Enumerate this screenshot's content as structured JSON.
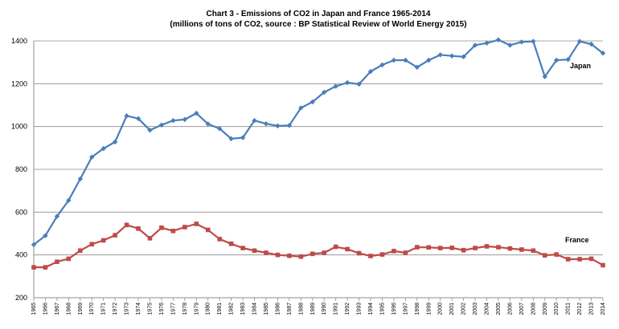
{
  "chart_data": {
    "type": "line",
    "title": "Chart 3 - Emissions of CO2 in Japan and France 1965-2014",
    "subtitle": "(millions of tons of CO2, source : BP Statistical Review of World Energy 2015)",
    "xlabel": "",
    "ylabel": "",
    "ylim": [
      200,
      1400
    ],
    "yticks": [
      "200",
      "400",
      "600",
      "800",
      "1000",
      "1200",
      "1400"
    ],
    "grid": true,
    "x": [
      "1965",
      "1966",
      "1967",
      "1968",
      "1969",
      "1970",
      "1971",
      "1972",
      "1973",
      "1974",
      "1975",
      "1976",
      "1977",
      "1978",
      "1979",
      "1980",
      "1981",
      "1982",
      "1983",
      "1984",
      "1985",
      "1986",
      "1987",
      "1988",
      "1989",
      "1990",
      "1991",
      "1992",
      "1993",
      "1994",
      "1995",
      "1996",
      "1997",
      "1998",
      "1999",
      "2000",
      "2001",
      "2002",
      "2003",
      "2004",
      "2005",
      "2006",
      "2007",
      "2008",
      "2009",
      "2010",
      "2011",
      "2012",
      "2013",
      "2014"
    ],
    "series": [
      {
        "name": "Japan",
        "color": "#4a7ebb",
        "marker": "diamond",
        "values": [
          448,
          490,
          580,
          655,
          755,
          857,
          897,
          928,
          1050,
          1037,
          983,
          1007,
          1028,
          1033,
          1062,
          1012,
          990,
          943,
          948,
          1028,
          1013,
          1003,
          1005,
          1087,
          1115,
          1160,
          1188,
          1205,
          1198,
          1257,
          1288,
          1310,
          1310,
          1277,
          1310,
          1335,
          1330,
          1326,
          1380,
          1390,
          1405,
          1380,
          1395,
          1398,
          1233,
          1310,
          1313,
          1398,
          1385,
          1343
        ]
      },
      {
        "name": "France",
        "color": "#be4b48",
        "marker": "square",
        "values": [
          342,
          342,
          368,
          382,
          420,
          450,
          468,
          492,
          540,
          523,
          478,
          527,
          512,
          530,
          545,
          517,
          474,
          452,
          432,
          420,
          410,
          400,
          396,
          392,
          405,
          410,
          438,
          427,
          408,
          395,
          402,
          418,
          410,
          436,
          435,
          432,
          433,
          422,
          432,
          440,
          436,
          430,
          425,
          420,
          398,
          402,
          380,
          380,
          382,
          352
        ]
      }
    ]
  }
}
